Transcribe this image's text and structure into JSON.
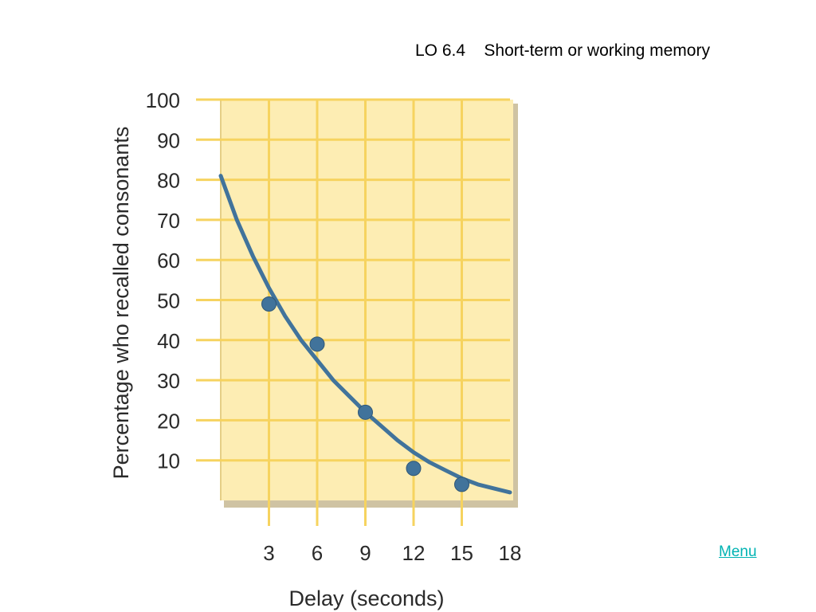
{
  "slide": {
    "title": "LO 6.4    Short-term or working memory",
    "menu_label": "Menu"
  },
  "colors": {
    "plot_background": "#fdedb3",
    "gridline": "#f6d35f",
    "curve": "#41739b",
    "point": "#41739b",
    "menu_link": "#00b3b3"
  },
  "chart_data": {
    "type": "scatter",
    "title": "",
    "xlabel": "Delay (seconds)",
    "ylabel": "Percentage who recalled consonants",
    "xlim": [
      0,
      18
    ],
    "ylim": [
      0,
      100
    ],
    "x_ticks": [
      3,
      6,
      9,
      12,
      15,
      18
    ],
    "y_ticks": [
      10,
      20,
      30,
      40,
      50,
      60,
      70,
      80,
      90,
      100
    ],
    "grid": true,
    "points": [
      {
        "x": 3,
        "y": 49
      },
      {
        "x": 6,
        "y": 39
      },
      {
        "x": 9,
        "y": 22
      },
      {
        "x": 12,
        "y": 8
      },
      {
        "x": 15,
        "y": 4
      }
    ],
    "fitted_curve": {
      "x": [
        0,
        1,
        2,
        3,
        4,
        5,
        6,
        7,
        8,
        9,
        10,
        11,
        12,
        13,
        14,
        15,
        16,
        17,
        18
      ],
      "y": [
        81,
        70,
        61,
        53,
        46,
        40,
        35,
        30,
        26,
        22,
        18.5,
        15,
        12,
        9.5,
        7.5,
        5.5,
        4,
        3,
        2
      ]
    }
  }
}
